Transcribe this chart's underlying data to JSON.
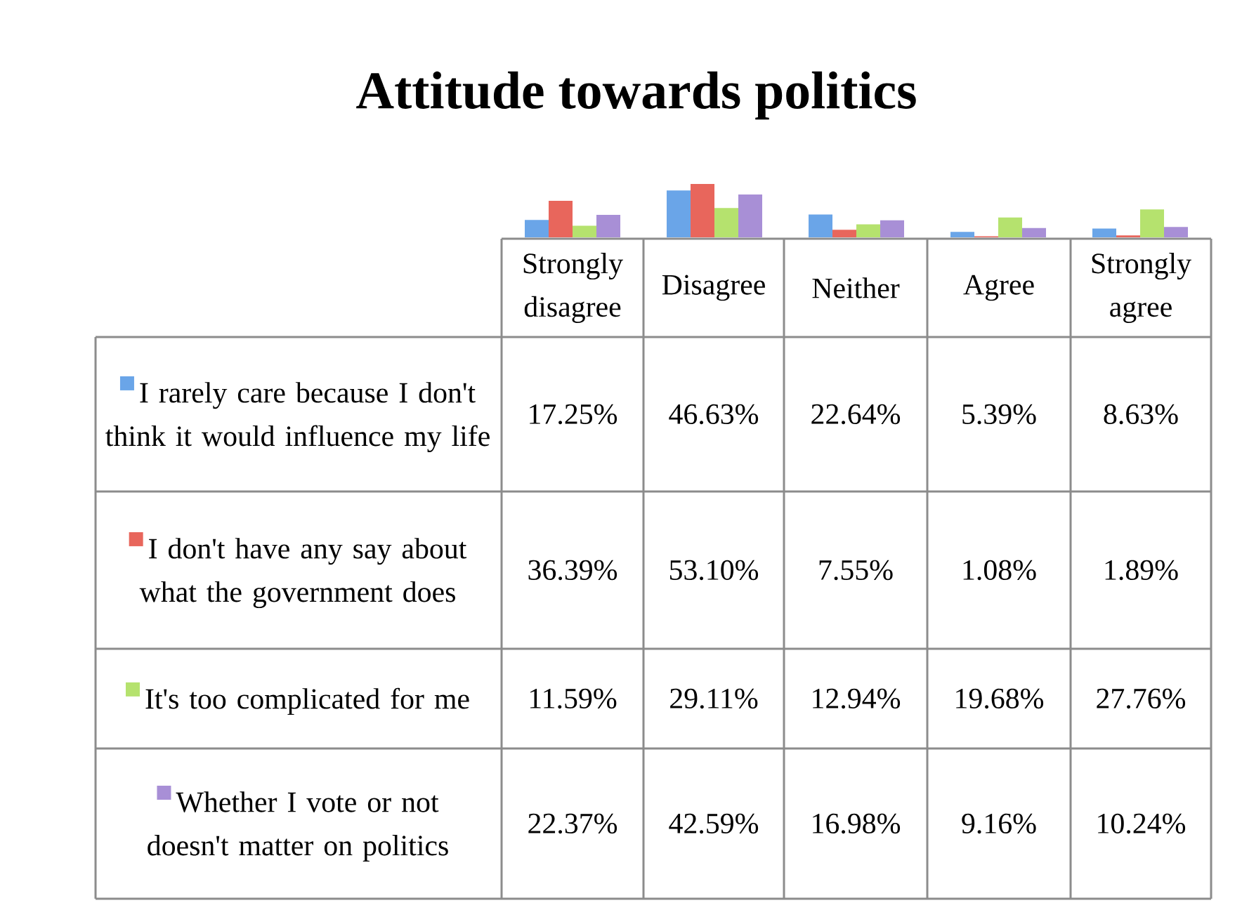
{
  "chart_data": {
    "type": "bar",
    "title": "Attitude towards politics",
    "categories": [
      "Strongly disagree",
      "Disagree",
      "Neither",
      "Agree",
      "Strongly agree"
    ],
    "series": [
      {
        "name": "I rarely care because I don't think it would influence my life",
        "color": "#6aa5e8",
        "values": [
          17.25,
          46.63,
          22.64,
          5.39,
          8.63
        ],
        "value_labels": [
          "17.25%",
          "46.63%",
          "22.64%",
          "5.39%",
          "8.63%"
        ]
      },
      {
        "name": "I don't have any say about what the government does",
        "color": "#e8665c",
        "values": [
          36.39,
          53.1,
          7.55,
          1.08,
          1.89
        ],
        "value_labels": [
          "36.39%",
          "53.10%",
          "7.55%",
          "1.08%",
          "1.89%"
        ]
      },
      {
        "name": "It's too complicated for me",
        "color": "#b5e26e",
        "values": [
          11.59,
          29.11,
          12.94,
          19.68,
          27.76
        ],
        "value_labels": [
          "11.59%",
          "29.11%",
          "12.94%",
          "19.68%",
          "27.76%"
        ]
      },
      {
        "name": "Whether I vote or not doesn't matter on politics",
        "color": "#a88fd6",
        "values": [
          22.37,
          42.59,
          16.98,
          9.16,
          10.24
        ],
        "value_labels": [
          "22.37%",
          "42.59%",
          "16.98%",
          "9.16%",
          "10.24%"
        ]
      }
    ],
    "legend": "bottom left"
  }
}
